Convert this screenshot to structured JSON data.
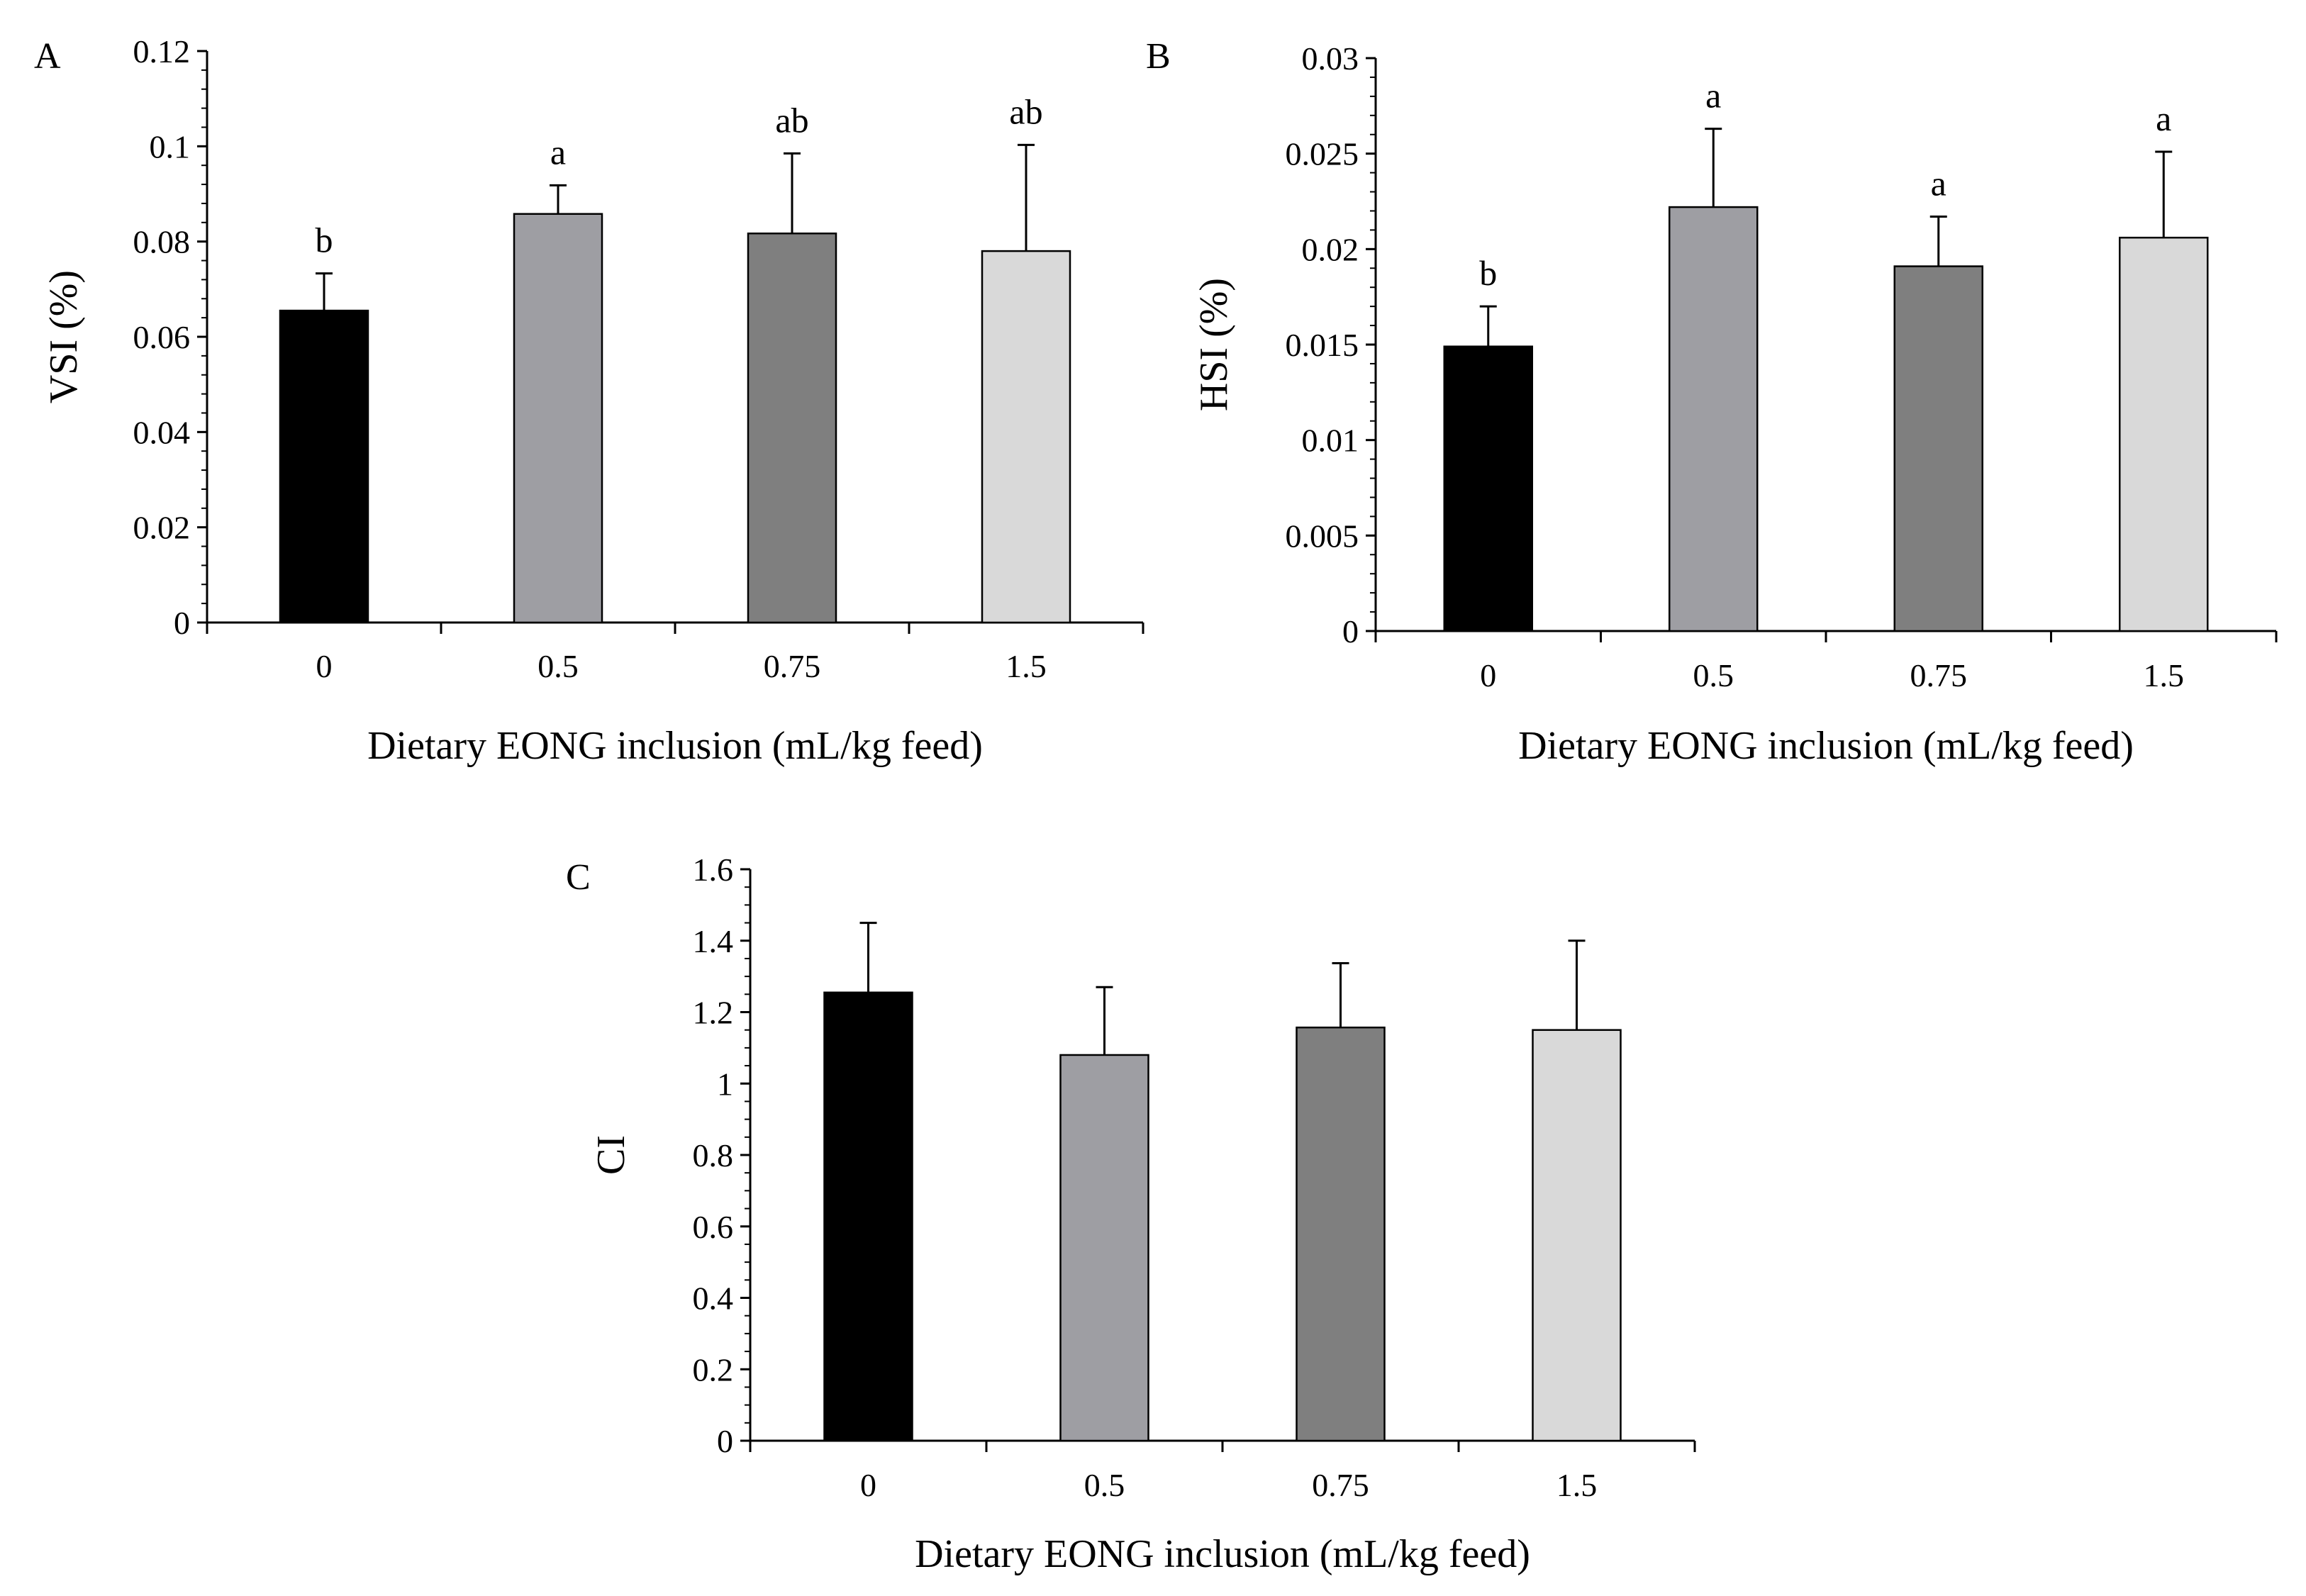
{
  "colors": {
    "background": "#ffffff",
    "axis": "#000000",
    "bar_fills": [
      "#000000",
      "#9e9ea3",
      "#7f7f7f",
      "#d9d9d9"
    ]
  },
  "chart_data": [
    {
      "type": "bar",
      "panel_label": "A",
      "xlabel": "Dietary EONG inclusion (mL/kg feed)",
      "ylabel": "VSI (%)",
      "categories": [
        "0",
        "0.5",
        "0.75",
        "1.5"
      ],
      "values": [
        0.0655,
        0.0858,
        0.0817,
        0.078
      ],
      "errors": [
        0.0078,
        0.006,
        0.0168,
        0.0223
      ],
      "significance_labels": [
        "b",
        "a",
        "ab",
        "ab"
      ],
      "ylim": [
        0,
        0.12
      ],
      "yticks": [
        0,
        0.02,
        0.04,
        0.06,
        0.08,
        0.1,
        0.12
      ],
      "ytick_labels": [
        "0",
        "0.02",
        "0.04",
        "0.06",
        "0.08",
        "0.1",
        "0.12"
      ],
      "grid": false
    },
    {
      "type": "bar",
      "panel_label": "B",
      "xlabel": "Dietary EONG inclusion (mL/kg feed)",
      "ylabel": "HSI (%)",
      "categories": [
        "0",
        "0.5",
        "0.75",
        "1.5"
      ],
      "values": [
        0.0149,
        0.0222,
        0.0191,
        0.0206
      ],
      "errors": [
        0.0021,
        0.0041,
        0.0026,
        0.0045
      ],
      "significance_labels": [
        "b",
        "a",
        "a",
        "a"
      ],
      "ylim": [
        0,
        0.03
      ],
      "yticks": [
        0,
        0.005,
        0.01,
        0.015,
        0.02,
        0.025,
        0.03
      ],
      "ytick_labels": [
        "0",
        "0.005",
        "0.01",
        "0.015",
        "0.02",
        "0.025",
        "0.03"
      ],
      "grid": false
    },
    {
      "type": "bar",
      "panel_label": "C",
      "xlabel": "Dietary EONG inclusion (mL/kg feed)",
      "ylabel": "CI",
      "categories": [
        "0",
        "0.5",
        "0.75",
        "1.5"
      ],
      "values": [
        1.255,
        1.08,
        1.157,
        1.15
      ],
      "errors": [
        0.195,
        0.19,
        0.18,
        0.25
      ],
      "significance_labels": [
        "",
        "",
        "",
        ""
      ],
      "ylim": [
        0,
        1.6
      ],
      "yticks": [
        0,
        0.2,
        0.4,
        0.6,
        0.8,
        1,
        1.2,
        1.4,
        1.6
      ],
      "ytick_labels": [
        "0",
        "0.2",
        "0.4",
        "0.6",
        "0.8",
        "1",
        "1.2",
        "1.4",
        "1.6"
      ],
      "grid": false
    }
  ]
}
